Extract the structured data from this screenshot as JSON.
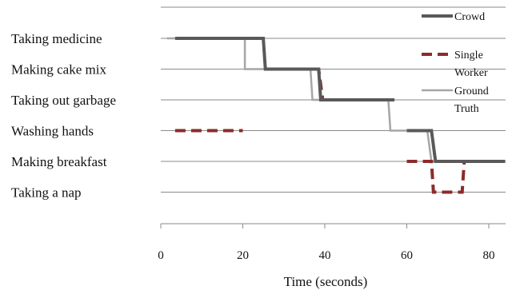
{
  "chart_data": {
    "type": "line",
    "step": true,
    "title": "",
    "xlabel": "Time (seconds)",
    "ylabel": "",
    "xlim": [
      0,
      84
    ],
    "xticks": [
      0,
      20,
      40,
      60,
      80
    ],
    "categories": [
      "Taking medicine",
      "Making cake mix",
      "Taking out garbage",
      "Washing hands",
      "Making breakfast",
      "Taking a nap"
    ],
    "grid": true,
    "legend_position": "top-right",
    "series": [
      {
        "name": "Crowd",
        "style": "solid-thick",
        "color": "#595959",
        "segments": [
          [
            [
              3.5,
              "Taking medicine"
            ],
            [
              25,
              "Taking medicine"
            ],
            [
              25.5,
              "Making cake mix"
            ],
            [
              38.5,
              "Making cake mix"
            ],
            [
              39,
              "Taking out garbage"
            ],
            [
              57,
              "Taking out garbage"
            ]
          ],
          [
            [
              60,
              "Washing hands"
            ],
            [
              66,
              "Washing hands"
            ],
            [
              67,
              "Making breakfast"
            ],
            [
              84,
              "Making breakfast"
            ]
          ]
        ]
      },
      {
        "name": "Single Worker",
        "style": "dashed",
        "color": "#8c2b2b",
        "segments": [
          [
            [
              25.5,
              "Making cake mix"
            ],
            [
              38.5,
              "Making cake mix"
            ],
            [
              39.5,
              "Taking out garbage"
            ],
            [
              56.5,
              "Taking out garbage"
            ]
          ],
          [
            [
              3.5,
              "Washing hands"
            ],
            [
              20,
              "Washing hands"
            ]
          ],
          [
            [
              60,
              "Making breakfast"
            ],
            [
              66,
              "Making breakfast"
            ],
            [
              66.5,
              "Taking a nap"
            ],
            [
              73.5,
              "Taking a nap"
            ],
            [
              74,
              "Making breakfast"
            ],
            [
              84,
              "Making breakfast"
            ]
          ]
        ]
      },
      {
        "name": "Ground Truth",
        "style": "solid",
        "color": "#a6a6a6",
        "segments": [
          [
            [
              1.5,
              "Taking medicine"
            ],
            [
              20.5,
              "Taking medicine"
            ],
            [
              20.5,
              "Making cake mix"
            ],
            [
              36.5,
              "Making cake mix"
            ],
            [
              37,
              "Taking out garbage"
            ],
            [
              55.5,
              "Taking out garbage"
            ],
            [
              56,
              "Washing hands"
            ],
            [
              65,
              "Washing hands"
            ],
            [
              66,
              "Making breakfast"
            ],
            [
              84,
              "Making breakfast"
            ]
          ]
        ]
      }
    ],
    "legend": [
      {
        "series": "Crowd",
        "lines": [
          "Crowd"
        ]
      },
      {
        "series": "Single Worker",
        "lines": [
          "Single",
          "Worker"
        ]
      },
      {
        "series": "Ground Truth",
        "lines": [
          "Ground",
          "Truth"
        ]
      }
    ]
  }
}
